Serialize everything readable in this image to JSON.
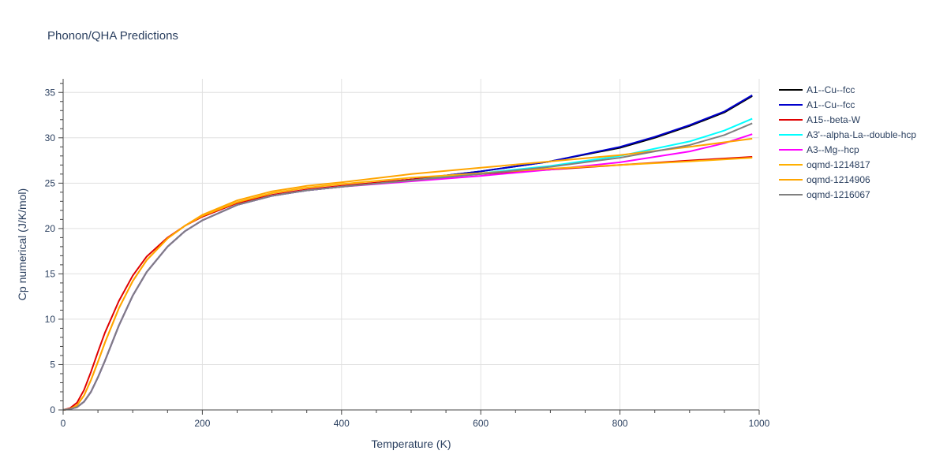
{
  "chart_data": {
    "type": "line",
    "title": "Phonon/QHA Predictions",
    "xlabel": "Temperature (K)",
    "ylabel": "Cp numerical (J/K/mol)",
    "xlim": [
      0,
      1000
    ],
    "ylim": [
      0,
      36.5
    ],
    "xticks": [
      0,
      200,
      400,
      600,
      800,
      1000
    ],
    "yticks": [
      0,
      5,
      10,
      15,
      20,
      25,
      30,
      35
    ],
    "grid": true,
    "legend_position": "top-right",
    "series": [
      {
        "name": "A1--Cu--fcc",
        "color": "#000000",
        "x": [
          0,
          10,
          20,
          30,
          40,
          50,
          60,
          80,
          100,
          120,
          150,
          175,
          200,
          250,
          300,
          350,
          400,
          500,
          600,
          700,
          800,
          850,
          900,
          950,
          990
        ],
        "y": [
          0,
          0.1,
          0.3,
          0.9,
          2.0,
          3.6,
          5.4,
          9.3,
          12.6,
          15.2,
          18.0,
          19.7,
          20.9,
          22.6,
          23.6,
          24.2,
          24.6,
          25.4,
          26.3,
          27.4,
          28.9,
          30.0,
          31.3,
          32.8,
          34.6
        ]
      },
      {
        "name": "A1--Cu--fcc",
        "color": "#0000cd",
        "x": [
          0,
          10,
          20,
          30,
          40,
          50,
          60,
          80,
          100,
          120,
          150,
          175,
          200,
          250,
          300,
          350,
          400,
          500,
          600,
          700,
          800,
          850,
          900,
          950,
          990
        ],
        "y": [
          0,
          0.1,
          0.3,
          0.9,
          2.0,
          3.6,
          5.4,
          9.3,
          12.6,
          15.2,
          18.0,
          19.7,
          20.9,
          22.6,
          23.6,
          24.2,
          24.6,
          25.4,
          26.3,
          27.4,
          29.0,
          30.1,
          31.4,
          32.9,
          34.7
        ]
      },
      {
        "name": "A15--beta-W",
        "color": "#e00000",
        "x": [
          0,
          10,
          20,
          30,
          40,
          50,
          60,
          80,
          100,
          120,
          150,
          175,
          200,
          250,
          300,
          350,
          400,
          500,
          600,
          700,
          800,
          900,
          990
        ],
        "y": [
          0,
          0.2,
          0.8,
          2.2,
          4.2,
          6.4,
          8.5,
          12.0,
          14.8,
          16.9,
          19.0,
          20.3,
          21.3,
          22.8,
          23.7,
          24.3,
          24.7,
          25.4,
          26.0,
          26.5,
          27.0,
          27.5,
          27.9
        ]
      },
      {
        "name": "A3'--alpha-La--double-hcp",
        "color": "#00ffff",
        "x": [
          0,
          10,
          20,
          30,
          40,
          50,
          60,
          80,
          100,
          120,
          150,
          175,
          200,
          250,
          300,
          350,
          400,
          500,
          600,
          700,
          800,
          900,
          950,
          990
        ],
        "y": [
          0,
          0.1,
          0.3,
          0.9,
          2.0,
          3.6,
          5.4,
          9.3,
          12.6,
          15.2,
          18.0,
          19.7,
          20.9,
          22.6,
          23.6,
          24.2,
          24.6,
          25.3,
          26.1,
          26.9,
          28.0,
          29.6,
          30.8,
          32.1
        ]
      },
      {
        "name": "A3--Mg--hcp",
        "color": "#ff00ff",
        "x": [
          0,
          10,
          20,
          30,
          40,
          50,
          60,
          80,
          100,
          120,
          150,
          175,
          200,
          250,
          300,
          350,
          400,
          500,
          600,
          700,
          800,
          900,
          950,
          990
        ],
        "y": [
          0,
          0.1,
          0.3,
          0.9,
          2.0,
          3.6,
          5.4,
          9.3,
          12.6,
          15.2,
          18.0,
          19.7,
          20.9,
          22.6,
          23.6,
          24.2,
          24.6,
          25.2,
          25.8,
          26.5,
          27.3,
          28.5,
          29.4,
          30.4
        ]
      },
      {
        "name": "oqmd-1214817",
        "color": "#ffb000",
        "x": [
          0,
          10,
          20,
          30,
          40,
          50,
          60,
          80,
          100,
          120,
          150,
          175,
          200,
          250,
          300,
          350,
          400,
          500,
          600,
          700,
          800,
          900,
          990
        ],
        "y": [
          0,
          0.1,
          0.5,
          1.6,
          3.3,
          5.3,
          7.4,
          11.2,
          14.2,
          16.5,
          18.9,
          20.3,
          21.4,
          22.9,
          23.9,
          24.5,
          24.9,
          25.6,
          26.1,
          26.6,
          27.0,
          27.4,
          27.8
        ]
      },
      {
        "name": "oqmd-1214906",
        "color": "#ffa500",
        "x": [
          0,
          10,
          20,
          30,
          40,
          50,
          60,
          80,
          100,
          120,
          150,
          175,
          200,
          250,
          300,
          350,
          400,
          500,
          600,
          700,
          800,
          900,
          990
        ],
        "y": [
          0,
          0.1,
          0.5,
          1.6,
          3.3,
          5.3,
          7.4,
          11.2,
          14.2,
          16.5,
          18.9,
          20.3,
          21.5,
          23.1,
          24.1,
          24.7,
          25.1,
          26.0,
          26.7,
          27.4,
          28.1,
          29.0,
          29.9
        ]
      },
      {
        "name": "oqmd-1216067",
        "color": "#808080",
        "x": [
          0,
          10,
          20,
          30,
          40,
          50,
          60,
          80,
          100,
          120,
          150,
          175,
          200,
          250,
          300,
          350,
          400,
          500,
          600,
          700,
          800,
          900,
          950,
          990
        ],
        "y": [
          0,
          0.1,
          0.3,
          0.9,
          2.0,
          3.6,
          5.4,
          9.3,
          12.6,
          15.2,
          18.0,
          19.7,
          20.9,
          22.6,
          23.6,
          24.2,
          24.6,
          25.3,
          26.0,
          26.8,
          27.8,
          29.2,
          30.3,
          31.6
        ]
      }
    ]
  }
}
